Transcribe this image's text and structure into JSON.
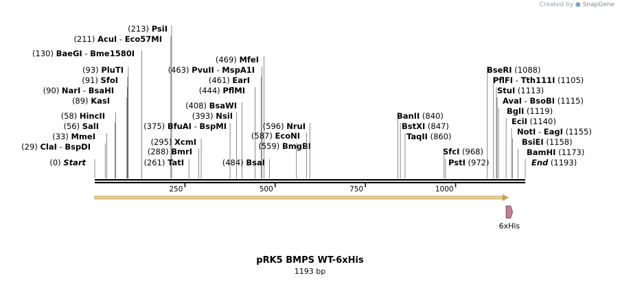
{
  "credit": {
    "prefix": "Created by",
    "brand": "SnapGene"
  },
  "plasmid": {
    "name": "pRK5 BMPS WT-6xHis",
    "length_label": "1193 bp",
    "length": 1193
  },
  "ruler": {
    "ticks": [
      {
        "pos": 250,
        "label": "250"
      },
      {
        "pos": 500,
        "label": "500"
      },
      {
        "pos": 750,
        "label": "750"
      },
      {
        "pos": 1000,
        "label": "1000"
      }
    ]
  },
  "feature": {
    "name": "6xHis",
    "start": 1140,
    "end": 1158,
    "color": "#c97c98"
  },
  "enzymes_left": [
    {
      "pos": 0,
      "pos_label": "(0)",
      "names": [
        "Start"
      ],
      "style": "italic"
    },
    {
      "pos": 29,
      "pos_label": "(29)",
      "names": [
        "ClaI",
        "BspDI"
      ]
    },
    {
      "pos": 33,
      "pos_label": "(33)",
      "names": [
        "MmeI"
      ]
    },
    {
      "pos": 56,
      "pos_label": "(56)",
      "names": [
        "SalI"
      ]
    },
    {
      "pos": 58,
      "pos_label": "(58)",
      "names": [
        "HincII"
      ]
    },
    {
      "pos": 89,
      "pos_label": "(89)",
      "names": [
        "KasI"
      ]
    },
    {
      "pos": 90,
      "pos_label": "(90)",
      "names": [
        "NarI",
        "BsaHI"
      ]
    },
    {
      "pos": 91,
      "pos_label": "(91)",
      "names": [
        "SfoI"
      ]
    },
    {
      "pos": 93,
      "pos_label": "(93)",
      "names": [
        "PluTI"
      ]
    },
    {
      "pos": 130,
      "pos_label": "(130)",
      "names": [
        "BaeGI",
        "Bme1580I"
      ]
    },
    {
      "pos": 211,
      "pos_label": "(211)",
      "names": [
        "AcuI",
        "Eco57MI"
      ]
    },
    {
      "pos": 213,
      "pos_label": "(213)",
      "names": [
        "PsiI"
      ]
    },
    {
      "pos": 261,
      "pos_label": "(261)",
      "names": [
        "TatI"
      ]
    },
    {
      "pos": 288,
      "pos_label": "(288)",
      "names": [
        "BmrI"
      ]
    },
    {
      "pos": 295,
      "pos_label": "(295)",
      "names": [
        "XcmI"
      ]
    },
    {
      "pos": 375,
      "pos_label": "(375)",
      "names": [
        "BfuAI",
        "BspMI"
      ]
    },
    {
      "pos": 393,
      "pos_label": "(393)",
      "names": [
        "NsiI"
      ]
    },
    {
      "pos": 408,
      "pos_label": "(408)",
      "names": [
        "BsaWI"
      ]
    },
    {
      "pos": 444,
      "pos_label": "(444)",
      "names": [
        "PflMI"
      ]
    },
    {
      "pos": 461,
      "pos_label": "(461)",
      "names": [
        "EarI"
      ]
    },
    {
      "pos": 463,
      "pos_label": "(463)",
      "names": [
        "PvuII",
        "MspA1I"
      ]
    },
    {
      "pos": 469,
      "pos_label": "(469)",
      "names": [
        "MfeI"
      ]
    },
    {
      "pos": 484,
      "pos_label": "(484)",
      "names": [
        "BsaI"
      ]
    },
    {
      "pos": 559,
      "pos_label": "(559)",
      "names": [
        "BmgBI"
      ]
    },
    {
      "pos": 587,
      "pos_label": "(587)",
      "names": [
        "EcoNI"
      ]
    },
    {
      "pos": 596,
      "pos_label": "(596)",
      "names": [
        "NruI"
      ]
    }
  ],
  "enzymes_right": [
    {
      "pos": 840,
      "pos_label": "(840)",
      "names": [
        "BanII"
      ]
    },
    {
      "pos": 847,
      "pos_label": "(847)",
      "names": [
        "BstXI"
      ]
    },
    {
      "pos": 860,
      "pos_label": "(860)",
      "names": [
        "TaqII"
      ]
    },
    {
      "pos": 968,
      "pos_label": "(968)",
      "names": [
        "SfcI"
      ]
    },
    {
      "pos": 972,
      "pos_label": "(972)",
      "names": [
        "PstI"
      ]
    },
    {
      "pos": 1088,
      "pos_label": "(1088)",
      "names": [
        "BseRI"
      ]
    },
    {
      "pos": 1105,
      "pos_label": "(1105)",
      "names": [
        "PflFI",
        "Tth111I"
      ]
    },
    {
      "pos": 1113,
      "pos_label": "(1113)",
      "names": [
        "StuI"
      ]
    },
    {
      "pos": 1115,
      "pos_label": "(1115)",
      "names": [
        "AvaI",
        "BsoBI"
      ]
    },
    {
      "pos": 1119,
      "pos_label": "(1119)",
      "names": [
        "BglI"
      ]
    },
    {
      "pos": 1140,
      "pos_label": "(1140)",
      "names": [
        "EciI"
      ]
    },
    {
      "pos": 1155,
      "pos_label": "(1155)",
      "names": [
        "NotI",
        "EagI"
      ]
    },
    {
      "pos": 1158,
      "pos_label": "(1158)",
      "names": [
        "BsiEI"
      ]
    },
    {
      "pos": 1173,
      "pos_label": "(1173)",
      "names": [
        "BamHI"
      ]
    },
    {
      "pos": 1193,
      "pos_label": "(1193)",
      "names": [
        "End"
      ],
      "style": "italic"
    }
  ]
}
